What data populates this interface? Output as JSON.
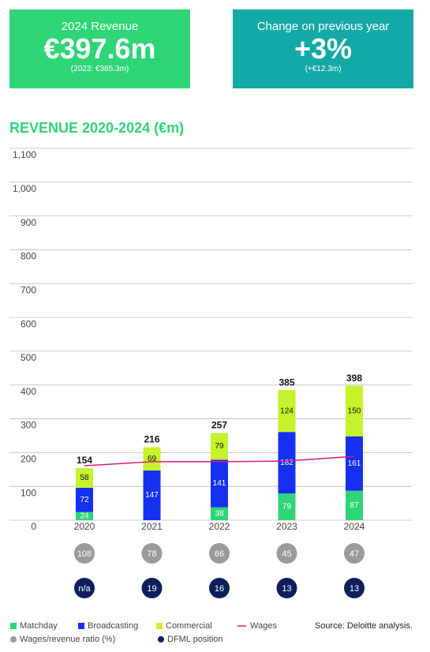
{
  "cards": [
    {
      "label": "2024 Revenue",
      "value": "€397.6m",
      "note": "(2023: €385.3m)",
      "color": "#2ed577"
    },
    {
      "label": "Change on previous year",
      "value": "+3%",
      "note": "(+€12.3m)",
      "color": "#14a9a6"
    }
  ],
  "chart_data": {
    "type": "stacked-bar",
    "title": "REVENUE 2020-2024 (€m)",
    "categories": [
      "2020",
      "2021",
      "2022",
      "2023",
      "2024"
    ],
    "series": [
      {
        "name": "Matchday",
        "color": "#2ed577",
        "label_color": "#ffffff",
        "values": [
          24,
          0,
          38,
          79,
          87
        ],
        "value_labels": [
          "24",
          null,
          "38",
          "79",
          "87"
        ]
      },
      {
        "name": "Broadcasting",
        "color": "#1530f0",
        "label_color": "#ffffff",
        "values": [
          72,
          147,
          141,
          182,
          161
        ]
      },
      {
        "name": "Commercial",
        "color": "#c5f22a",
        "label_color": "#111111",
        "values": [
          58,
          69,
          79,
          124,
          150
        ]
      }
    ],
    "totals": [
      154,
      216,
      257,
      385,
      398
    ],
    "wages": {
      "name": "Wages",
      "color": "#d6197a",
      "values": [
        161,
        173,
        173,
        175,
        189
      ]
    },
    "ylim": [
      0,
      1100
    ],
    "yticks": [
      0,
      100,
      200,
      300,
      400,
      500,
      600,
      700,
      800,
      900,
      {
        "value": 1000,
        "label": "1,000"
      },
      {
        "value": 1100,
        "label": "1,100"
      }
    ],
    "grid": true,
    "rows": [
      {
        "name": "Wages/revenue ratio (%)",
        "color": "#9a9a9a",
        "values": [
          108,
          78,
          66,
          45,
          47
        ]
      },
      {
        "name": "DFML position",
        "color": "#0d1f5c",
        "values": [
          "n/a",
          19,
          16,
          13,
          13
        ]
      }
    ],
    "source": "Source: Deloitte analysis."
  }
}
